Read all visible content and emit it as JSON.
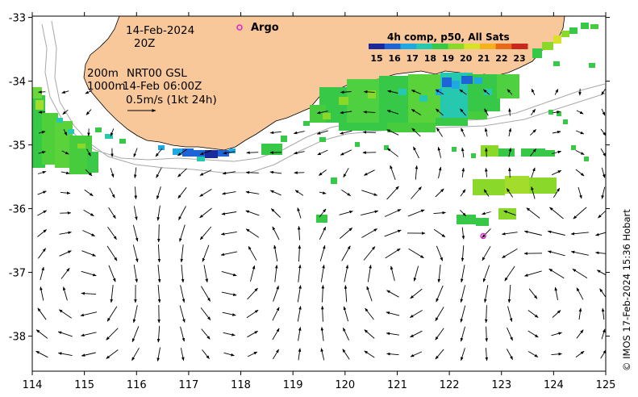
{
  "map": {
    "date_line": "14-Feb-2024",
    "time_line": "20Z",
    "depth_label_1": "200m",
    "depth_label_2": "1000m",
    "product_line": "NRT00 GSL",
    "current_time_line": "14-Feb 06:00Z",
    "scale_label": "0.5m/s (1kt 24h)",
    "argo_label": "Argo",
    "credit": "© IMOS 17-Feb-2024 15:36 Hobart",
    "land_color": "#f8c89a",
    "argo_color": "#e020d0"
  },
  "axes": {
    "x_ticks": [
      "114",
      "115",
      "116",
      "117",
      "118",
      "119",
      "120",
      "121",
      "122",
      "123",
      "124",
      "125"
    ],
    "y_ticks": [
      "-33",
      "-34",
      "-35",
      "-36",
      "-37",
      "-38"
    ],
    "lon_range": [
      114,
      125
    ],
    "lat_range": [
      -38.55,
      -32.98
    ]
  },
  "legend": {
    "title": "4h comp, p50, All Sats",
    "ticks": [
      "15",
      "16",
      "17",
      "18",
      "19",
      "20",
      "21",
      "22",
      "23"
    ],
    "colors": [
      "#1a2a9a",
      "#1f64d6",
      "#20a8e0",
      "#26c8b0",
      "#37c847",
      "#8ad82a",
      "#d8e02a",
      "#f5b21e",
      "#e66a1a",
      "#c8281e"
    ]
  },
  "argo_float": {
    "lon": 122.65,
    "lat": -36.43
  }
}
